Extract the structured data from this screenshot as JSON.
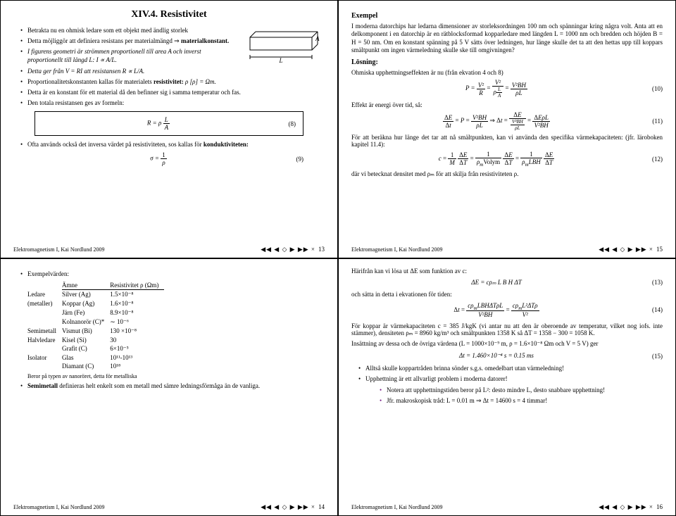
{
  "footer_credit": "Elektromagnetism I, Kai Nordlund 2009",
  "nav_glyphs": "◀◀ ◀ ◇ ▶ ▶▶   ×",
  "slide13": {
    "title": "XIV.4. Resistivitet",
    "b1": "Betrakta nu en ohmisk ledare som ett objekt med ändlig storlek",
    "b2_pre": "Detta möjliggör att definiera resistans per materialmängd ⇒ ",
    "b2_strong": "materialkonstant.",
    "b3": "I figurens geometri är strömmen proportionell till area A och inverst proportionellt till längd L: I ∝ A/L.",
    "b4": "Detta ger från V = RI att resistansen R ∝ L/A.",
    "b5_pre": "Proportionalitetskonstanten kallas för materialets ",
    "b5_strong": "resistivitet:",
    "b5_post": " ρ [ρ] = Ωm.",
    "b6": "Detta är en konstant för ett material då den befinner sig i samma temperatur och fas.",
    "b7": "Den totala resistansen ges av formeln:",
    "eq8": "R = ρ · L / A",
    "eq8_num": "(8)",
    "b8_pre": "Ofta används också det inversa värdet på resistiviteten, sos kallas för ",
    "b8_strong": "konduktiviteten:",
    "eq9": "σ = 1 / ρ",
    "eq9_num": "(9)",
    "diagram_L": "L",
    "diagram_A": "A",
    "page": "13"
  },
  "slide15": {
    "ex_label": "Exempel",
    "para": "I moderna datorchips har ledarna dimensioner av storleksordningen 100 nm och spänningar kring några volt. Anta att en delkomponent i en datorchip är en rätblocksformad kopparledare med längden L = 1000 nm och bredden och höjden B = H = 50 nm. Om en konstant spänning på 5 V sätts över ledningen, hur länge skulle det ta att den hettas upp till koppars smältpunkt om ingen värmeledning skulle ske till omgivningen?",
    "losning": "Lösning:",
    "p2": "Ohmiska upphettningseffekten är nu (från ekvation 4 och 8)",
    "eq10": "P = V² / R = V² / (ρL/A) = V²BH / (ρL)",
    "eq10_num": "(10)",
    "p3": "Effekt är energi över tid, så:",
    "eq11": "ΔE/Δt = P = V²BH / (ρL)  ⇒  Δt = ΔE / (V²BH/ρL) = ΔEρL / (V²BH)",
    "eq11_num": "(11)",
    "p4": "För att beräkna hur länge det tar att nå smältpunkten, kan vi använda den specifika värmekapaciteten: (jfr. läroboken kapitel 11.4):",
    "eq12": "c = (1/M)(ΔE/ΔT) = (1/(ρₘ Volym))(ΔE/ΔT) = (1/(ρₘ L B H))(ΔE/ΔT)",
    "eq12_num": "(12)",
    "p5": "där vi betecknat densitet med ρₘ för att skilja från resistiviteten ρ.",
    "page": "15"
  },
  "slide14": {
    "b1": "Exempelvärden:",
    "col_amne": "Ämne",
    "col_res": "Resistivitet ρ (Ωm)",
    "rows": [
      [
        "Ledare",
        "Silver (Ag)",
        "1.5×10⁻⁸"
      ],
      [
        "(metaller)",
        "Koppar (Ag)",
        "1.6×10⁻⁸"
      ],
      [
        "",
        "Järn (Fe)",
        "8.9×10⁻⁸"
      ],
      [
        "",
        "Kolnanorör (C)*",
        "∼ 10⁻⁶"
      ],
      [
        "Semimetall",
        "Vismut (Bi)",
        "130 ×10⁻⁸"
      ],
      [
        "Halvledare",
        "Kisel (Si)",
        "30"
      ],
      [
        "",
        "Grafit (C)",
        "6×10⁻⁵"
      ],
      [
        "Isolator",
        "Glas",
        "10¹¹-10¹³"
      ],
      [
        "",
        "Diamant (C)",
        "10¹⁸"
      ]
    ],
    "note": "Beror på typen av nanoröret, detta för metalliska",
    "b2_strong": "Semimetall",
    "b2_post": " definieras helt enkelt som en metall med sämre ledningsförmåga än de vanliga.",
    "page": "14"
  },
  "slide16": {
    "p1": "Härifrån kan vi lösa ut ΔE som funktion av c:",
    "eq13": "ΔE = cρₘ L B H ΔT",
    "eq13_num": "(13)",
    "p2": "och sätta in detta i ekvationen för tiden:",
    "eq14": "Δt = (cρₘ L B H ΔT ρL) / (V²BH) = (cρₘ L² ΔT ρ) / V²",
    "eq14_num": "(14)",
    "p3": "För koppar är värmekapaciteten c = 385 J/kgK (vi antar nu att den är oberoende av temperatur, vilket nog iofs. inte stämmer), densiteten ρₘ = 8960 kg/m³ och smältpunkten 1358 K så ΔT = 1358 − 300 = 1058 K.",
    "p4": "Insättning av dessa och de övriga värdena (L = 1000×10⁻⁹ m, ρ = 1.6×10⁻⁸ Ωm och V = 5 V) ger",
    "eq15": "Δt = 1.460×10⁻⁴ s = 0.15 ms",
    "eq15_num": "(15)",
    "b1": "Alltså skulle koppartråden brinna sönder s.g.s. omedelbart utan värmeledning!",
    "b2": "Upphettning är ett allvarligt problem i moderna datorer!",
    "b3": "Notera att upphettningstiden beror på L²: desto mindre L, desto snabbare upphettning!",
    "b4": "Jfr. makroskopisk tråd: L = 0.01 m ⇒ Δt = 14600 s = 4 timmar!",
    "page": "16"
  }
}
